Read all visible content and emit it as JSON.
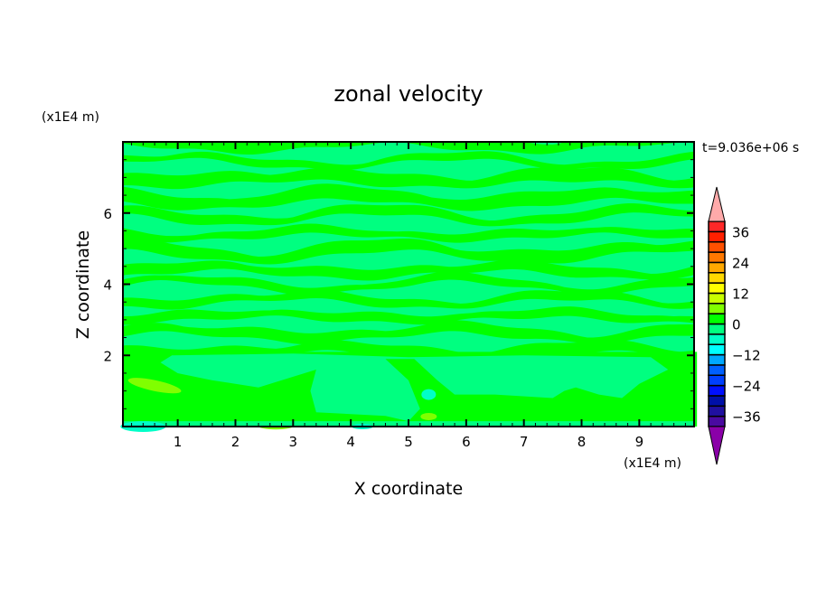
{
  "chart_data": {
    "type": "contour",
    "title": "zonal velocity",
    "xlabel": "X coordinate",
    "ylabel": "Z coordinate",
    "x_scale_label": "(x1E4 m)",
    "y_scale_label": "(x1E4 m)",
    "time_label": "t=9.036e+06 s",
    "xlim": [
      0.05,
      9.95
    ],
    "ylim": [
      0,
      8
    ],
    "xticks": [
      1,
      2,
      3,
      4,
      5,
      6,
      7,
      8,
      9
    ],
    "yticks": [
      2,
      4,
      6
    ],
    "levels": [
      -40,
      -36,
      -32,
      -28,
      -24,
      -20,
      -16,
      -12,
      -8,
      -4,
      0,
      4,
      8,
      12,
      16,
      20,
      24,
      28,
      32,
      36,
      40
    ],
    "colorbar_labels": [
      36,
      24,
      12,
      0,
      -12,
      -24,
      -36
    ],
    "colors": [
      "#4a0aa0",
      "#2010a0",
      "#0010a8",
      "#0010ff",
      "#0040ff",
      "#0060ff",
      "#00a8ff",
      "#00ffff",
      "#00ffc8",
      "#00ff80",
      "#00ff00",
      "#80ff00",
      "#c8ff00",
      "#ffff00",
      "#ffd800",
      "#ffa800",
      "#ff7800",
      "#ff5000",
      "#ff2000",
      "#ff2828"
    ],
    "over_color": "#ffaaaa",
    "under_color": "#8a00a8",
    "dominant_range": [
      -4,
      4
    ],
    "legend": "right"
  }
}
